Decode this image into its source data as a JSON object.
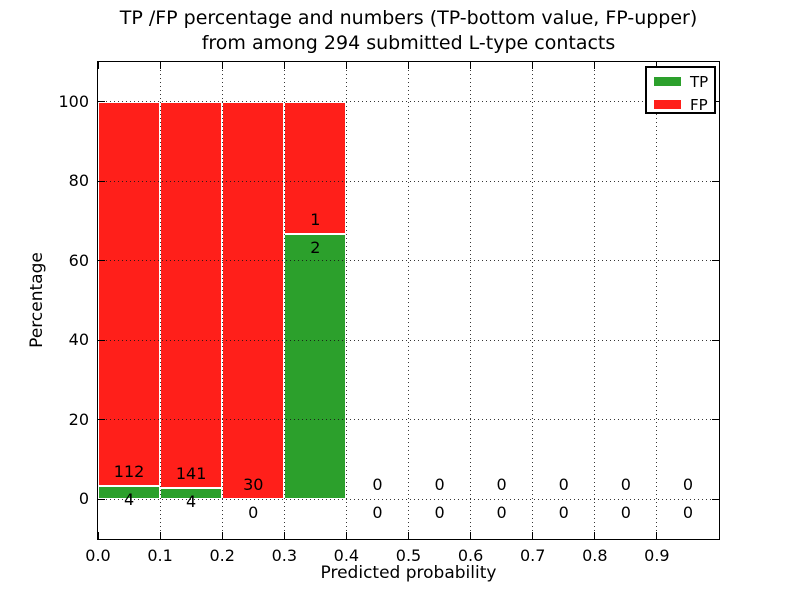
{
  "title": {
    "line1": "TP /FP percentage and numbers (TP-bottom value, FP-upper)",
    "line2": "from among 294 submitted L-type contacts"
  },
  "axes": {
    "xlabel": "Predicted probability",
    "ylabel": "Percentage"
  },
  "legend": {
    "position": "upper right",
    "items": [
      {
        "label": "TP",
        "color": "#2ca02c"
      },
      {
        "label": "FP",
        "color": "#ff1f1a"
      }
    ]
  },
  "chart_data": {
    "type": "bar",
    "subtype": "stacked-percentage-histogram",
    "title": "TP /FP percentage and numbers (TP-bottom value, FP-upper) from among 294 submitted L-type contacts",
    "xlabel": "Predicted probability",
    "ylabel": "Percentage",
    "total_contacts": 294,
    "grid": "dotted",
    "legend_position": "upper right",
    "xlim": [
      0.0,
      1.0
    ],
    "ylim": [
      -10,
      110
    ],
    "bin_edges": [
      0.0,
      0.1,
      0.2,
      0.3,
      0.4,
      0.5,
      0.6,
      0.7,
      0.8,
      0.9,
      1.0
    ],
    "xtick_values": [
      0.0,
      0.1,
      0.2,
      0.3,
      0.4,
      0.5,
      0.6,
      0.7,
      0.8,
      0.9
    ],
    "xtick_labels": [
      "0.0",
      "0.1",
      "0.2",
      "0.3",
      "0.4",
      "0.5",
      "0.6",
      "0.7",
      "0.8",
      "0.9"
    ],
    "ytick_values": [
      0,
      20,
      40,
      60,
      80,
      100
    ],
    "ytick_labels": [
      "0",
      "20",
      "40",
      "60",
      "80",
      "100"
    ],
    "series": [
      {
        "name": "TP",
        "color": "#2ca02c",
        "counts": [
          4,
          4,
          0,
          2,
          0,
          0,
          0,
          0,
          0,
          0
        ],
        "percent": [
          3.45,
          2.76,
          0,
          66.67,
          0,
          0,
          0,
          0,
          0,
          0
        ]
      },
      {
        "name": "FP",
        "color": "#ff1f1a",
        "counts": [
          112,
          141,
          30,
          1,
          0,
          0,
          0,
          0,
          0,
          0
        ],
        "percent": [
          96.55,
          97.24,
          100,
          33.33,
          0,
          0,
          0,
          0,
          0,
          0
        ]
      }
    ]
  }
}
